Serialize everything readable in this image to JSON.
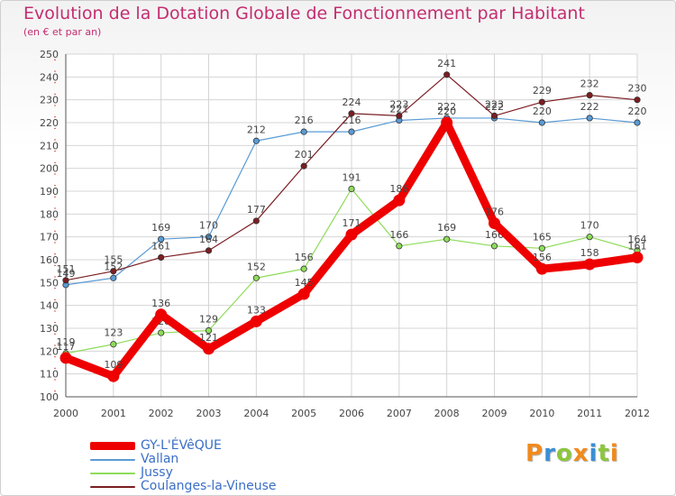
{
  "header": {
    "title": "Evolution de la Dotation Globale de Fonctionnement par Habitant",
    "subtitle": "(en € et par an)"
  },
  "logo": {
    "text": "Proxiti",
    "letters": [
      {
        "ch": "P",
        "color": "#f08a1c"
      },
      {
        "ch": "r",
        "color": "#3a8fd6"
      },
      {
        "ch": "o",
        "color": "#8cc63f"
      },
      {
        "ch": "x",
        "color": "#f08a1c"
      },
      {
        "ch": "i",
        "color": "#3a8fd6"
      },
      {
        "ch": "t",
        "color": "#8cc63f"
      },
      {
        "ch": "i",
        "color": "#f08a1c"
      }
    ]
  },
  "chart_data": {
    "type": "line",
    "title": "Evolution de la Dotation Globale de Fonctionnement par Habitant",
    "subtitle": "(en € et par an)",
    "xlabel": "",
    "ylabel": "",
    "ylim": [
      100,
      250
    ],
    "ytick_step": 10,
    "grid": true,
    "legend_position": "bottom-left",
    "categories": [
      "2000",
      "2001",
      "2002",
      "2003",
      "2004",
      "2005",
      "2006",
      "2007",
      "2008",
      "2009",
      "2010",
      "2011",
      "2012"
    ],
    "series": [
      {
        "name": "Vallan",
        "color": "#5a9bd5",
        "values": [
          149,
          152,
          169,
          170,
          212,
          216,
          216,
          221,
          222,
          222,
          220,
          222,
          220
        ]
      },
      {
        "name": "Jussy",
        "color": "#8edc5b",
        "values": [
          119,
          123,
          128,
          129,
          152,
          156,
          191,
          166,
          169,
          166,
          165,
          170,
          164
        ]
      },
      {
        "name": "Coulanges-la-Vineuse",
        "color": "#7b1e22",
        "values": [
          151,
          155,
          161,
          164,
          177,
          201,
          224,
          223,
          241,
          223,
          229,
          232,
          230
        ]
      },
      {
        "name": "GY-L'ÉVêQUE",
        "color": "#ee0000",
        "values": [
          117,
          109,
          136,
          121,
          133,
          145,
          171,
          186,
          220,
          176,
          156,
          158,
          161
        ]
      }
    ],
    "legend": [
      "GY-L'ÉVêQUE",
      "Vallan",
      "Jussy",
      "Coulanges-la-Vineuse"
    ]
  }
}
